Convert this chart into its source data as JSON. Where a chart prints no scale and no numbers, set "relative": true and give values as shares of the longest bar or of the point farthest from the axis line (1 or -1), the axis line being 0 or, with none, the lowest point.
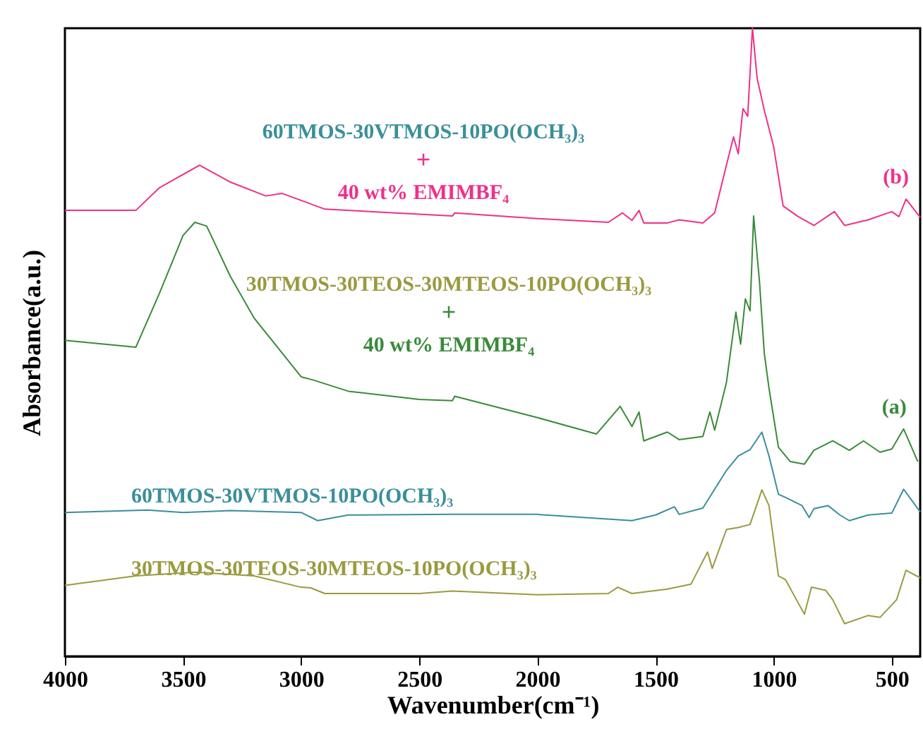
{
  "chart_data": {
    "type": "line",
    "relative": true,
    "xlabel": "Wavenumber(cm⁻¹)",
    "ylabel": "Absorbance(a.u.)",
    "xlim": [
      4000,
      380
    ],
    "xticks": [
      4000,
      3500,
      3000,
      2500,
      2000,
      1500,
      1000,
      500
    ],
    "grid": false,
    "marker": "none",
    "line_style": "solid",
    "series": [
      {
        "name": "(b)",
        "color": "#f0308a",
        "x": [
          4000,
          3700,
          3600,
          3430,
          3300,
          3150,
          3080,
          2900,
          2700,
          2360,
          2350,
          2000,
          1700,
          1640,
          1600,
          1570,
          1550,
          1450,
          1400,
          1300,
          1250,
          1200,
          1170,
          1150,
          1130,
          1110,
          1090,
          1070,
          1040,
          1000,
          960,
          900,
          830,
          743,
          700,
          600,
          500,
          470,
          440,
          380
        ],
        "values": [
          0.71,
          0.71,
          0.746,
          0.782,
          0.755,
          0.733,
          0.737,
          0.712,
          0.708,
          0.701,
          0.706,
          0.697,
          0.691,
          0.706,
          0.694,
          0.71,
          0.69,
          0.69,
          0.695,
          0.69,
          0.706,
          0.782,
          0.827,
          0.8,
          0.872,
          0.86,
          1.0,
          0.92,
          0.87,
          0.811,
          0.717,
          0.701,
          0.686,
          0.708,
          0.686,
          0.695,
          0.708,
          0.7,
          0.728,
          0.699
        ]
      },
      {
        "name": "(a)",
        "color": "#3a8a3a",
        "x": [
          4000,
          3700,
          3600,
          3500,
          3450,
          3400,
          3300,
          3200,
          3100,
          3000,
          2950,
          2800,
          2500,
          2360,
          2350,
          2000,
          1750,
          1650,
          1600,
          1570,
          1550,
          1450,
          1400,
          1300,
          1270,
          1250,
          1200,
          1160,
          1140,
          1120,
          1100,
          1085,
          1060,
          1040,
          1020,
          980,
          930,
          870,
          830,
          750,
          680,
          620,
          550,
          500,
          450,
          390
        ],
        "values": [
          0.503,
          0.492,
          0.578,
          0.67,
          0.691,
          0.685,
          0.605,
          0.539,
          0.492,
          0.445,
          0.44,
          0.422,
          0.409,
          0.407,
          0.414,
          0.38,
          0.354,
          0.398,
          0.366,
          0.389,
          0.343,
          0.357,
          0.345,
          0.35,
          0.389,
          0.36,
          0.436,
          0.548,
          0.497,
          0.569,
          0.55,
          0.701,
          0.596,
          0.483,
          0.427,
          0.333,
          0.31,
          0.306,
          0.328,
          0.343,
          0.328,
          0.343,
          0.325,
          0.33,
          0.362,
          0.31
        ]
      },
      {
        "name": "60TMOS-30VTMOS-10PO(OCH₃)₃",
        "color": "#3a8f9a",
        "x": [
          4000,
          3650,
          3500,
          3300,
          3000,
          2930,
          2800,
          2360,
          2000,
          1600,
          1500,
          1420,
          1400,
          1300,
          1200,
          1150,
          1100,
          1050,
          1020,
          980,
          950,
          880,
          850,
          830,
          770,
          720,
          680,
          600,
          500,
          450,
          380
        ],
        "values": [
          0.229,
          0.233,
          0.229,
          0.232,
          0.229,
          0.216,
          0.225,
          0.226,
          0.226,
          0.216,
          0.225,
          0.238,
          0.226,
          0.236,
          0.296,
          0.319,
          0.329,
          0.357,
          0.319,
          0.258,
          0.253,
          0.24,
          0.221,
          0.235,
          0.24,
          0.225,
          0.216,
          0.225,
          0.228,
          0.266,
          0.23
        ]
      },
      {
        "name": "30TMOS-30TEOS-30MTEOS-10PO(OCH₃)₃",
        "color": "#9a9a40",
        "x": [
          4000,
          3700,
          3450,
          3200,
          3000,
          2960,
          2900,
          2500,
          2360,
          2000,
          1700,
          1660,
          1600,
          1450,
          1350,
          1280,
          1260,
          1200,
          1150,
          1100,
          1050,
          1020,
          980,
          950,
          870,
          840,
          780,
          750,
          700,
          600,
          550,
          480,
          440,
          380
        ],
        "values": [
          0.113,
          0.128,
          0.134,
          0.128,
          0.11,
          0.109,
          0.1,
          0.1,
          0.104,
          0.098,
          0.1,
          0.11,
          0.1,
          0.107,
          0.115,
          0.166,
          0.14,
          0.202,
          0.205,
          0.21,
          0.265,
          0.24,
          0.128,
          0.122,
          0.067,
          0.11,
          0.105,
          0.09,
          0.052,
          0.065,
          0.062,
          0.09,
          0.137,
          0.125
        ]
      }
    ],
    "annotations": [
      "60TMOS-30VTMOS-10PO(OCH₃)₃",
      "+",
      "40 wt% EMIMBF₄",
      "30TMOS-30TEOS-30MTEOS-10PO(OCH₃)₃",
      "+",
      "40 wt% EMIMBF₄"
    ]
  }
}
